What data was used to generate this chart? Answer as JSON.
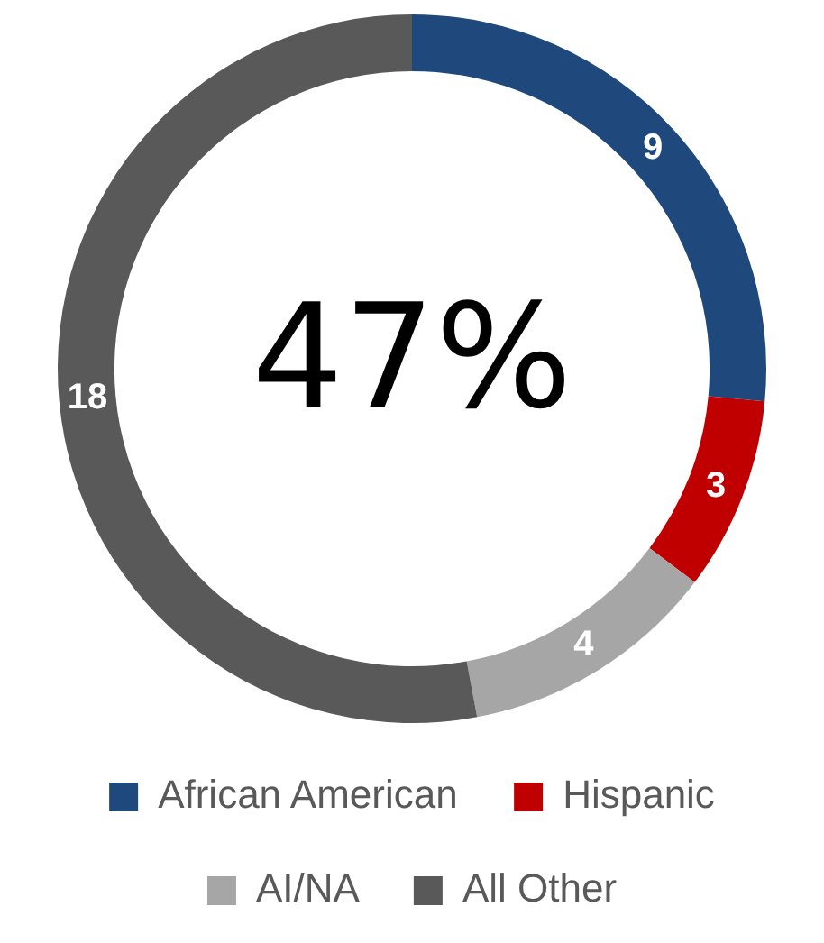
{
  "chart_data": {
    "type": "donut",
    "categories": [
      "African American",
      "Hispanic",
      "AI/NA",
      "All Other"
    ],
    "values": [
      9,
      3,
      4,
      18
    ],
    "colors": [
      "#1f497d",
      "#c00000",
      "#a6a6a6",
      "#595959"
    ],
    "data_labels": true,
    "legend": "bottom",
    "annotations": [
      "47%"
    ]
  }
}
